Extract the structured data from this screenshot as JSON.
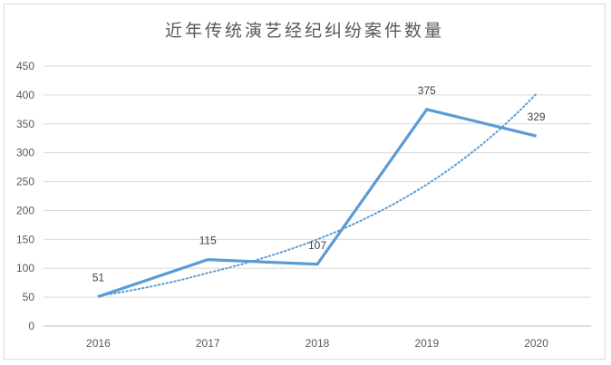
{
  "chart_data": {
    "type": "line",
    "title": "近年传统演艺经纪纠纷案件数量",
    "xlabel": "",
    "ylabel": "",
    "categories": [
      "2016",
      "2017",
      "2018",
      "2019",
      "2020"
    ],
    "series": [
      {
        "values": [
          51,
          115,
          107,
          375,
          329
        ],
        "color": "#5b9bd5",
        "show_data_labels": true
      }
    ],
    "trendline": {
      "kind": "exponential",
      "style": "dotted",
      "color": "#5b9bd5",
      "values": [
        52,
        92,
        150,
        245,
        402
      ]
    },
    "ylim": [
      0,
      450
    ],
    "yticks": [
      0,
      50,
      100,
      150,
      200,
      250,
      300,
      350,
      400,
      450
    ],
    "grid": true,
    "legend": "none"
  }
}
